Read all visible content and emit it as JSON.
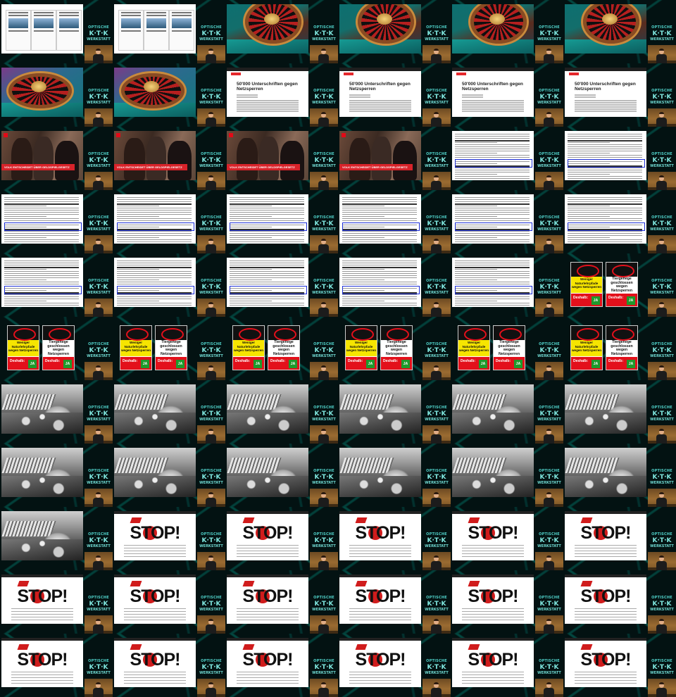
{
  "brand": {
    "line1": "OPTISCHE",
    "line2": "K·T·K",
    "line3": "WERKSTATT"
  },
  "article_title": "50'000 Unterschriften gegen Netzsperren",
  "news_caption": "VOLK ENTSCHEIDET ÜBER GELDSPIELGESETZ",
  "posters": {
    "poster1": "Weniger Naturlehrpfade wegen Netzsperren",
    "poster2": "Tiergehege geschlossen wegen Netzsperren",
    "cta": "Deshalb:",
    "vote": "JA"
  },
  "stop_text": "STOP!",
  "frames": [
    "twitter",
    "twitter",
    "roulette",
    "roulette",
    "roulette",
    "roulette",
    "roulette2",
    "roulette2",
    "news",
    "news",
    "news",
    "news",
    "tv",
    "tv",
    "tv",
    "tv",
    "doc",
    "doc",
    "doc",
    "doc",
    "doc",
    "doc",
    "doc",
    "doc",
    "doc",
    "doc",
    "doc",
    "doc",
    "doc",
    "posters",
    "posters",
    "posters",
    "posters",
    "posters",
    "posters",
    "posters",
    "dam",
    "dam",
    "dam",
    "dam",
    "dam",
    "dam",
    "dam",
    "dam",
    "dam",
    "dam",
    "dam",
    "dam",
    "dam",
    "stop",
    "stop",
    "stop",
    "stop",
    "stop",
    "stop",
    "stop",
    "stop",
    "stop",
    "stop",
    "stop",
    "stop",
    "stop",
    "stop",
    "stop",
    "stop",
    "stop"
  ],
  "colors": {
    "accent": "#58c7c2",
    "red": "#e3101b",
    "highlight_box": "#1d2fd6"
  }
}
